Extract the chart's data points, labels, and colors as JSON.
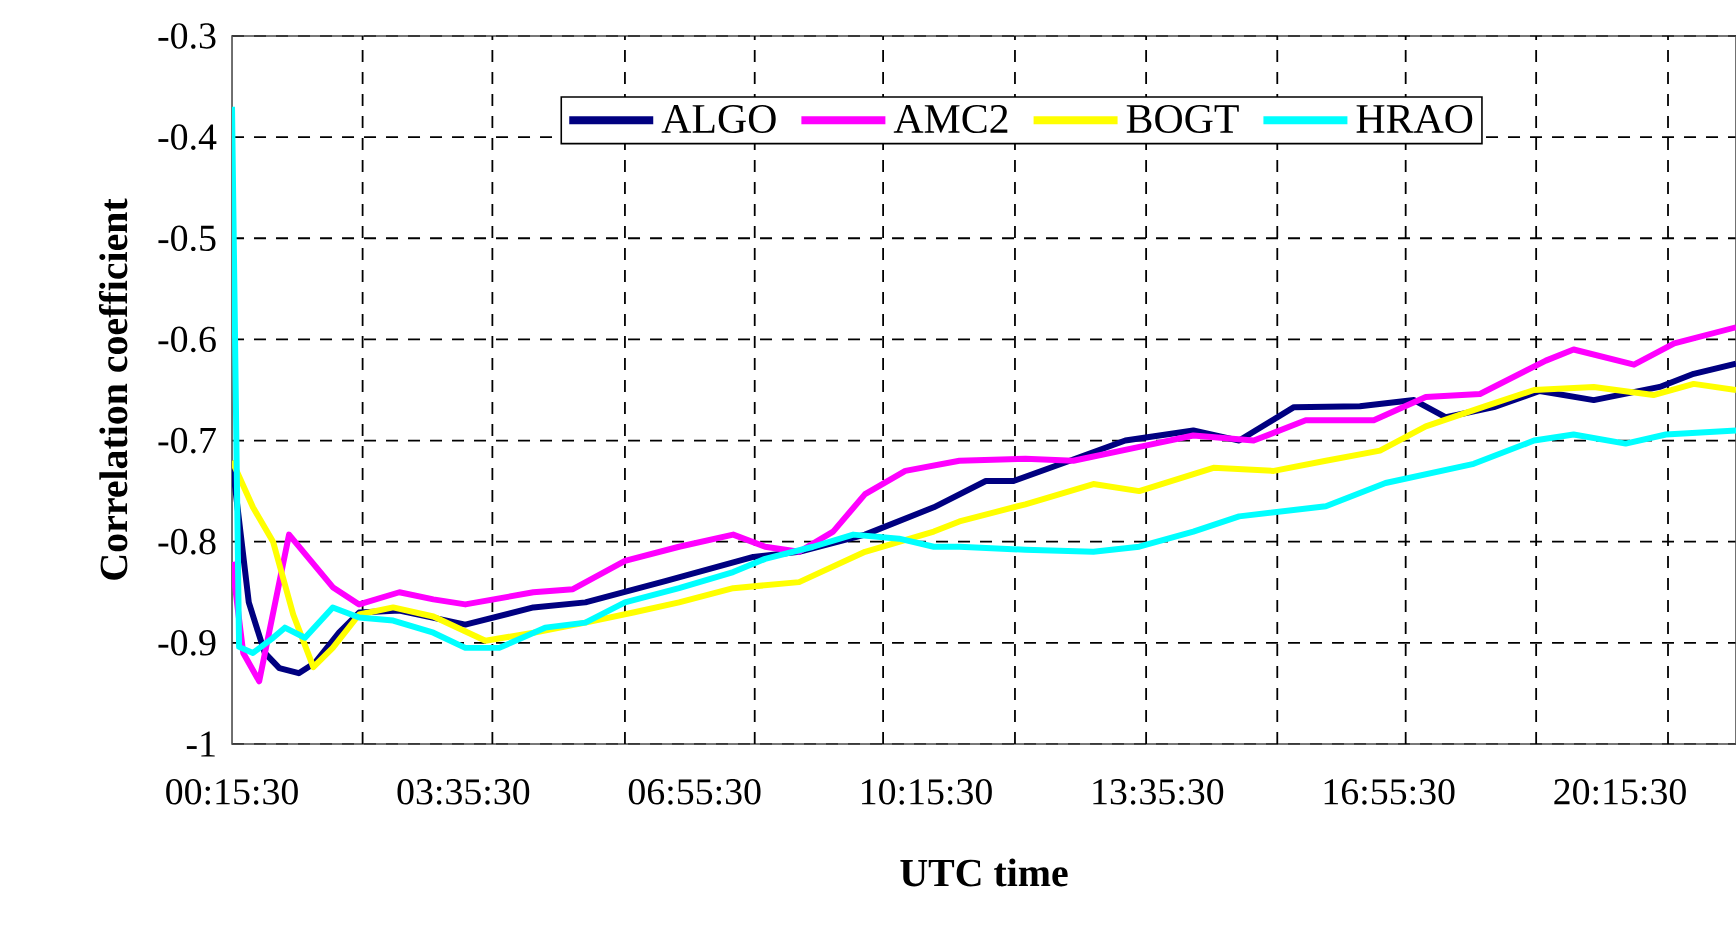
{
  "chart_data": {
    "type": "line",
    "xlabel": "UTC time",
    "ylabel": "Correlation coefficient",
    "xlim": [
      0.2583,
      21.93
    ],
    "ylim": [
      -1,
      -0.3
    ],
    "xticks": [
      {
        "value": 0.2583,
        "label": "00:15:30"
      },
      {
        "value": 3.5917,
        "label": "03:35:30"
      },
      {
        "value": 6.925,
        "label": "06:55:30"
      },
      {
        "value": 10.2583,
        "label": "10:15:30"
      },
      {
        "value": 13.5917,
        "label": "13:35:30"
      },
      {
        "value": 16.925,
        "label": "16:55:30"
      },
      {
        "value": 20.2583,
        "label": "20:15:30"
      },
      {
        "value": 2.14,
        "label": null
      },
      {
        "value": 4.01,
        "label": null
      },
      {
        "value": 5.92,
        "label": null
      },
      {
        "value": 7.79,
        "label": null
      },
      {
        "value": 9.64,
        "label": null
      },
      {
        "value": 11.54,
        "label": null
      },
      {
        "value": 13.43,
        "label": null
      },
      {
        "value": 15.32,
        "label": null
      },
      {
        "value": 17.17,
        "label": null
      },
      {
        "value": 19.05,
        "label": null
      },
      {
        "value": 20.95,
        "label": null
      }
    ],
    "yticks": [
      -1,
      -0.9,
      -0.8,
      -0.7,
      -0.6,
      -0.5,
      -0.4,
      -0.3
    ],
    "grid": true,
    "legend": "top",
    "marker": "none",
    "line_style": "solid",
    "series": [
      {
        "name": "ALGO",
        "color": "#000080",
        "x": [
          0.2583,
          0.5,
          0.73,
          0.94,
          1.22,
          1.45,
          1.8,
          2.09,
          2.67,
          3.62,
          4.6,
          5.35,
          6.5,
          7.77,
          8.43,
          9.38,
          10.37,
          11.12,
          11.52,
          12.33,
          13.13,
          14.11,
          14.77,
          15.56,
          16.51,
          17.29,
          17.75,
          18.44,
          19.1,
          19.88,
          20.83,
          21.32,
          21.93
        ],
        "values": [
          -0.72,
          -0.86,
          -0.91,
          -0.925,
          -0.93,
          -0.92,
          -0.89,
          -0.87,
          -0.868,
          -0.882,
          -0.865,
          -0.86,
          -0.839,
          -0.815,
          -0.81,
          -0.793,
          -0.766,
          -0.74,
          -0.74,
          -0.72,
          -0.7,
          -0.69,
          -0.7,
          -0.667,
          -0.666,
          -0.66,
          -0.677,
          -0.667,
          -0.651,
          -0.66,
          -0.647,
          -0.634,
          -0.624
        ]
      },
      {
        "name": "AMC2",
        "color": "#ff00ff",
        "x": [
          0.2583,
          0.42,
          0.65,
          1.08,
          1.71,
          2.09,
          2.67,
          3.16,
          3.62,
          4.6,
          5.17,
          5.92,
          6.7,
          7.48,
          7.94,
          8.43,
          8.92,
          9.38,
          9.96,
          10.74,
          11.69,
          12.38,
          13.42,
          14.11,
          14.98,
          15.73,
          16.71,
          17.46,
          18.24,
          19.19,
          19.59,
          20.46,
          21.04,
          21.93
        ],
        "values": [
          -0.82,
          -0.91,
          -0.938,
          -0.793,
          -0.845,
          -0.862,
          -0.85,
          -0.857,
          -0.862,
          -0.85,
          -0.847,
          -0.819,
          -0.805,
          -0.793,
          -0.805,
          -0.81,
          -0.79,
          -0.753,
          -0.73,
          -0.72,
          -0.718,
          -0.72,
          -0.705,
          -0.695,
          -0.7,
          -0.68,
          -0.68,
          -0.657,
          -0.654,
          -0.621,
          -0.61,
          -0.625,
          -0.604,
          -0.588
        ]
      },
      {
        "name": "BOGT",
        "color": "#ffff00",
        "x": [
          0.2583,
          0.56,
          0.85,
          1.14,
          1.43,
          1.71,
          2.09,
          2.58,
          3.16,
          3.91,
          4.6,
          5.35,
          6.04,
          6.7,
          7.48,
          8.43,
          9.38,
          10.37,
          10.74,
          11.69,
          12.67,
          13.33,
          14.4,
          15.27,
          16.02,
          16.8,
          17.46,
          18.32,
          19.02,
          19.88,
          20.74,
          21.32,
          21.93
        ],
        "values": [
          -0.72,
          -0.766,
          -0.8,
          -0.872,
          -0.924,
          -0.905,
          -0.872,
          -0.865,
          -0.874,
          -0.898,
          -0.89,
          -0.88,
          -0.87,
          -0.86,
          -0.846,
          -0.84,
          -0.81,
          -0.79,
          -0.78,
          -0.763,
          -0.743,
          -0.75,
          -0.727,
          -0.73,
          -0.72,
          -0.71,
          -0.686,
          -0.666,
          -0.65,
          -0.647,
          -0.655,
          -0.644,
          -0.65
        ]
      },
      {
        "name": "HRAO",
        "color": "#00ffff",
        "x": [
          0.2583,
          0.36,
          0.56,
          0.85,
          1.02,
          1.31,
          1.71,
          2.09,
          2.58,
          3.16,
          3.62,
          4.11,
          4.77,
          5.35,
          5.92,
          6.7,
          7.48,
          7.94,
          8.63,
          9.21,
          9.87,
          10.37,
          10.74,
          11.69,
          12.67,
          13.33,
          14.11,
          14.77,
          16.02,
          16.88,
          18.15,
          19.02,
          19.59,
          20.34,
          20.92,
          21.93
        ],
        "values": [
          -0.37,
          -0.904,
          -0.91,
          -0.895,
          -0.885,
          -0.895,
          -0.865,
          -0.875,
          -0.878,
          -0.89,
          -0.905,
          -0.905,
          -0.885,
          -0.88,
          -0.86,
          -0.846,
          -0.83,
          -0.817,
          -0.805,
          -0.793,
          -0.797,
          -0.805,
          -0.805,
          -0.808,
          -0.81,
          -0.805,
          -0.79,
          -0.775,
          -0.765,
          -0.742,
          -0.723,
          -0.7,
          -0.694,
          -0.703,
          -0.694,
          -0.69
        ]
      }
    ]
  }
}
